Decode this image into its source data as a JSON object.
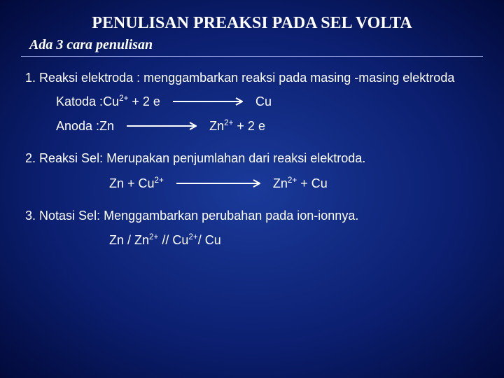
{
  "colors": {
    "text": "#ffffff",
    "arrow": "#ffffff",
    "hr": "#9aa6e6",
    "bg_center": "#1a3a9a",
    "bg_mid": "#0b1e6e",
    "bg_edge": "#020a3a"
  },
  "typography": {
    "title_family": "Times New Roman",
    "title_size_pt": 24,
    "title_weight": "bold",
    "subtitle_family": "Times New Roman",
    "subtitle_size_pt": 20,
    "subtitle_style": "italic bold",
    "body_family": "Verdana",
    "body_size_pt": 18
  },
  "title": "PENULISAN PREAKSI PADA SEL VOLTA",
  "subtitle": "Ada 3  cara penulisan",
  "items": [
    {
      "num": "1.",
      "text": "Reaksi elektroda :  menggambarkan reaksi pada masing -masing elektroda",
      "equations": [
        {
          "left_label": "Katoda  :  ",
          "lhs": "Cu<sup>2+</sup> + 2 e",
          "rhs": "Cu",
          "arrow_len": 100
        },
        {
          "left_label": "Anoda   :  ",
          "lhs": "Zn",
          "rhs": "Zn<sup>2+</sup> + 2 e",
          "arrow_len": 100
        }
      ]
    },
    {
      "num": "2.",
      "text": "Reaksi Sel:  Merupakan penjumlahan dari reaksi elektroda.",
      "center_eq": {
        "lhs": "Zn  +  Cu<sup>2+</sup>",
        "rhs": "Zn<sup>2+</sup>  +    Cu",
        "arrow_len": 120
      }
    },
    {
      "num": "3.",
      "text": "Notasi Sel:  Menggambarkan perubahan pada ion-ionnya.",
      "notation": "Zn / Zn<sup>2+</sup> // Cu<sup>2+</sup>/ Cu"
    }
  ],
  "arrow_style": {
    "stroke": "#ffffff",
    "stroke_width": 2,
    "head_len": 10,
    "head_w": 5
  }
}
